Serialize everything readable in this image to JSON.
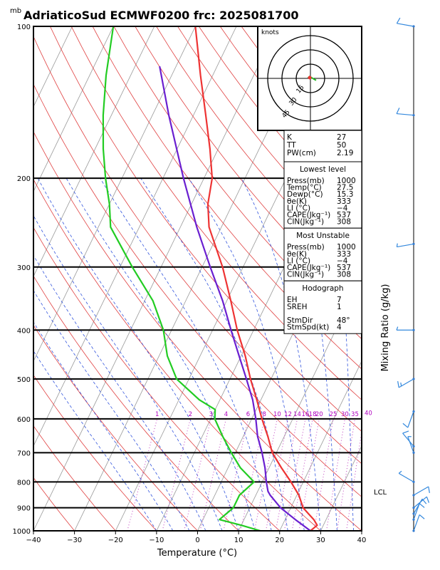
{
  "title": "AdriaticoSud ECMWF0200 frc: 2025081700",
  "y_unit": "mb",
  "x_axis_label": "Temperature (°C)",
  "right_axis_label": "Mixing Ratio (g/kg)",
  "lcl_label": "LCL",
  "hodograph": {
    "unit_label": "knots",
    "ring_labels": [
      "15",
      "30",
      "45"
    ],
    "ring_values": [
      15,
      30,
      45
    ],
    "storm_dir": 48,
    "storm_speed": 4
  },
  "indices": {
    "top": [
      {
        "label": "K",
        "value": "27"
      },
      {
        "label": "TT",
        "value": "50"
      },
      {
        "label": "PW(cm)",
        "value": "2.19"
      }
    ],
    "sections": [
      {
        "title": "Lowest level",
        "rows": [
          {
            "label": "Press(mb)",
            "value": "1000"
          },
          {
            "label": "Temp(°C)",
            "value": "27.5"
          },
          {
            "label": "Dewp(°C)",
            "value": "15.3"
          },
          {
            "label": "θe(K)",
            "value": "333"
          },
          {
            "label": "LI (°C)",
            "value": "−4"
          },
          {
            "label": "CAPE(Jkg⁻¹)",
            "value": "537"
          },
          {
            "label": "CIN(Jkg⁻¹)",
            "value": "308"
          }
        ]
      },
      {
        "title": "Most Unstable",
        "rows": [
          {
            "label": "Press(mb)",
            "value": "1000"
          },
          {
            "label": "θe(K)",
            "value": "333"
          },
          {
            "label": "LI (°C)",
            "value": "−4"
          },
          {
            "label": "CAPE(Jkg⁻¹)",
            "value": "537"
          },
          {
            "label": "CIN(Jkg⁻¹)",
            "value": "308"
          }
        ]
      },
      {
        "title": "Hodograph",
        "rows": [
          {
            "label": "EH",
            "value": "7"
          },
          {
            "label": "SREH",
            "value": "1"
          },
          {
            "label": "",
            "value": ""
          },
          {
            "label": "StmDir",
            "value": "48°"
          },
          {
            "label": "StmSpd(kt)",
            "value": "4"
          }
        ]
      }
    ]
  },
  "colors": {
    "temperature": "#ee3333",
    "dewpoint": "#22cc22",
    "parcel": "#6a1fd0",
    "dry_adiabat": "#e04040",
    "moist_adiabat": "#3355dd",
    "isotherm": "#999999",
    "mixing_ratio": "#c040c0"
  },
  "chart_data": {
    "type": "skew-t",
    "x_range": [
      -40,
      40
    ],
    "x_ticks": [
      -40,
      -30,
      -20,
      -10,
      0,
      10,
      20,
      30,
      40
    ],
    "y_range": [
      1000,
      100
    ],
    "y_ticks": [
      1000,
      900,
      800,
      700,
      600,
      500,
      400,
      300,
      200,
      100
    ],
    "y_scale": "log",
    "mixing_ratio_labels": [
      1,
      2,
      3,
      4,
      6,
      8,
      10,
      12,
      14,
      16,
      18,
      20,
      25,
      30,
      35,
      40
    ],
    "series": [
      {
        "name": "temperature",
        "points": [
          [
            1000,
            27.5
          ],
          [
            975,
            28.5
          ],
          [
            950,
            27
          ],
          [
            925,
            25
          ],
          [
            900,
            23
          ],
          [
            850,
            20.5
          ],
          [
            800,
            17
          ],
          [
            750,
            13
          ],
          [
            700,
            9
          ],
          [
            650,
            6
          ],
          [
            600,
            2.5
          ],
          [
            550,
            -1
          ],
          [
            500,
            -5
          ],
          [
            450,
            -9
          ],
          [
            400,
            -14
          ],
          [
            350,
            -19
          ],
          [
            300,
            -25
          ],
          [
            250,
            -33
          ],
          [
            225,
            -36
          ],
          [
            200,
            -38
          ],
          [
            175,
            -42
          ],
          [
            150,
            -47
          ],
          [
            125,
            -53
          ],
          [
            100,
            -60
          ]
        ]
      },
      {
        "name": "dewpoint",
        "points": [
          [
            1000,
            15.3
          ],
          [
            975,
            10
          ],
          [
            950,
            4
          ],
          [
            925,
            5
          ],
          [
            900,
            6
          ],
          [
            850,
            6
          ],
          [
            800,
            8
          ],
          [
            750,
            3
          ],
          [
            700,
            -1
          ],
          [
            650,
            -5
          ],
          [
            600,
            -9
          ],
          [
            575,
            -10
          ],
          [
            550,
            -15
          ],
          [
            500,
            -23
          ],
          [
            450,
            -28
          ],
          [
            400,
            -32
          ],
          [
            350,
            -38
          ],
          [
            300,
            -47
          ],
          [
            250,
            -57
          ],
          [
            225,
            -60
          ],
          [
            200,
            -64
          ],
          [
            175,
            -68
          ],
          [
            150,
            -72
          ],
          [
            125,
            -76
          ],
          [
            100,
            -80
          ]
        ]
      },
      {
        "name": "parcel",
        "points": [
          [
            1000,
            27.5
          ],
          [
            950,
            22.5
          ],
          [
            900,
            17.5
          ],
          [
            850,
            13.5
          ],
          [
            835,
            12.5
          ],
          [
            800,
            11
          ],
          [
            750,
            9
          ],
          [
            700,
            6.5
          ],
          [
            650,
            3.5
          ],
          [
            600,
            1
          ],
          [
            550,
            -2
          ],
          [
            500,
            -6
          ],
          [
            450,
            -10.5
          ],
          [
            400,
            -15.5
          ],
          [
            350,
            -21
          ],
          [
            300,
            -28
          ],
          [
            250,
            -36
          ],
          [
            200,
            -45
          ],
          [
            150,
            -56
          ],
          [
            120,
            -64
          ]
        ]
      }
    ],
    "wind_barbs": [
      {
        "p": 100,
        "dir": 280,
        "kt": 10
      },
      {
        "p": 150,
        "dir": 275,
        "kt": 10
      },
      {
        "p": 270,
        "dir": 260,
        "kt": 5
      },
      {
        "p": 400,
        "dir": 270,
        "kt": 5
      },
      {
        "p": 500,
        "dir": 240,
        "kt": 15
      },
      {
        "p": 580,
        "dir": 200,
        "kt": 10
      },
      {
        "p": 680,
        "dir": 320,
        "kt": 10
      },
      {
        "p": 700,
        "dir": 340,
        "kt": 5
      },
      {
        "p": 800,
        "dir": 300,
        "kt": 5
      },
      {
        "p": 850,
        "dir": 60,
        "kt": 10
      },
      {
        "p": 900,
        "dir": 50,
        "kt": 10
      },
      {
        "p": 925,
        "dir": 30,
        "kt": 10
      },
      {
        "p": 950,
        "dir": 20,
        "kt": 10
      },
      {
        "p": 1000,
        "dir": 20,
        "kt": 10
      }
    ],
    "hodograph_trace": [
      [
        0,
        0
      ],
      [
        -2,
        1
      ],
      [
        -1,
        2
      ],
      [
        1,
        1
      ],
      [
        4,
        -1
      ],
      [
        6,
        -2
      ]
    ]
  }
}
